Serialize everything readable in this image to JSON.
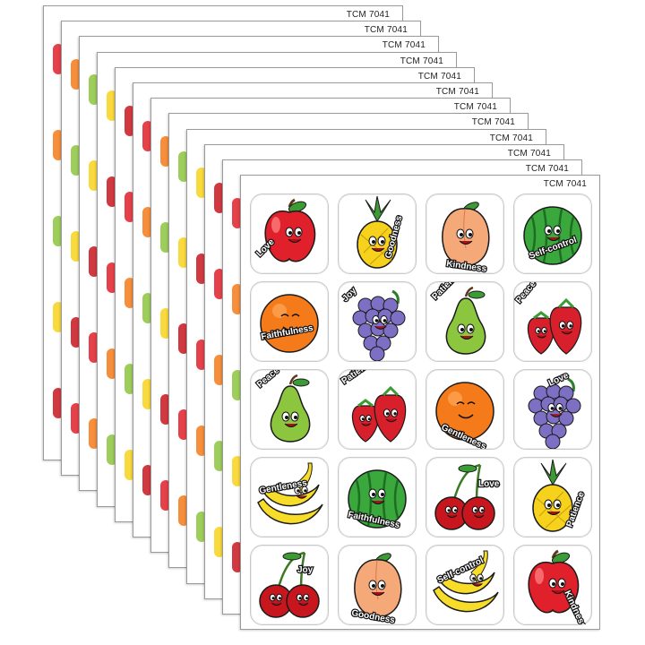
{
  "product_code": "TCM 7041",
  "sheet_count": 12,
  "stickers": [
    {
      "fruit": "apple",
      "label": "Love"
    },
    {
      "fruit": "pineapple",
      "label": "Goodness"
    },
    {
      "fruit": "peach",
      "label": "Kindness"
    },
    {
      "fruit": "watermelon",
      "label": "Self-control"
    },
    {
      "fruit": "orange",
      "label": "Faithfulness"
    },
    {
      "fruit": "grapes",
      "label": "Joy"
    },
    {
      "fruit": "pear",
      "label": "Patience"
    },
    {
      "fruit": "strawberries",
      "label": "Peace"
    },
    {
      "fruit": "pear",
      "label": "Peace"
    },
    {
      "fruit": "strawberries",
      "label": "Patience"
    },
    {
      "fruit": "orange",
      "label": "Gentleness"
    },
    {
      "fruit": "grapes",
      "label": "Love"
    },
    {
      "fruit": "bananas",
      "label": "Gentleness"
    },
    {
      "fruit": "watermelon",
      "label": "Faithfulness"
    },
    {
      "fruit": "cherries",
      "label": "Love"
    },
    {
      "fruit": "pineapple",
      "label": "Patience"
    },
    {
      "fruit": "cherries",
      "label": "Joy"
    },
    {
      "fruit": "peach",
      "label": "Goodness"
    },
    {
      "fruit": "bananas",
      "label": "Self-control"
    },
    {
      "fruit": "apple",
      "label": "Kindness"
    }
  ],
  "colors": {
    "apple": "#e0202a",
    "pineapple": "#f7d21c",
    "peach": "#f5a878",
    "watermelon": "#3aa83c",
    "orange": "#f47a1a",
    "grapes": "#7d6fc4",
    "pear": "#8cc63e",
    "strawberries": "#d8202c",
    "bananas": "#f7dd2a",
    "cherries": "#c8161e",
    "leaf": "#3d9b35",
    "outline": "#1a1a1a"
  }
}
